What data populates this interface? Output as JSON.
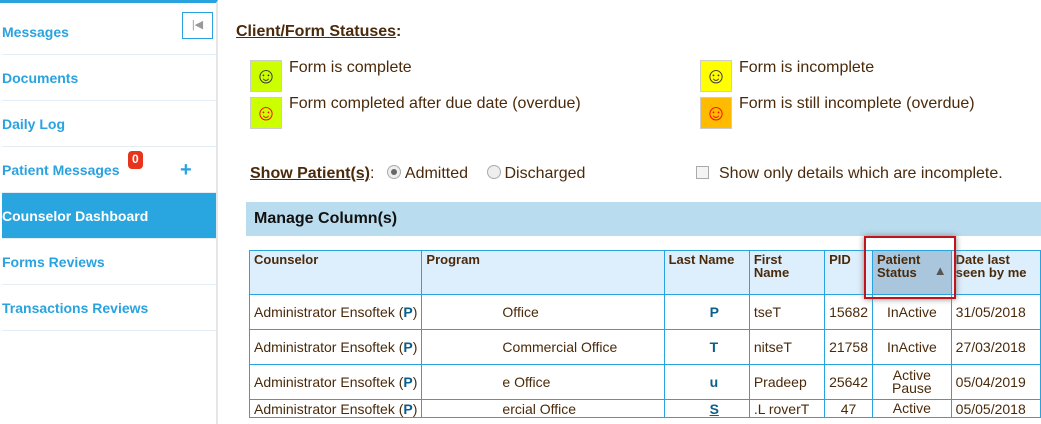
{
  "sidebar": {
    "items": [
      {
        "label": "Messages"
      },
      {
        "label": "Documents"
      },
      {
        "label": "Daily Log"
      },
      {
        "label": "Patient Messages",
        "badge": "0"
      },
      {
        "label": "Counselor Dashboard",
        "active": true
      },
      {
        "label": "Forms Reviews"
      },
      {
        "label": "Transactions Reviews"
      }
    ],
    "collapse_icon": "collapse-left-icon"
  },
  "statuses": {
    "title": "Client/Form Statuses",
    "items": [
      {
        "label": "Form is complete",
        "bg": "#ccff00",
        "face": "#333333"
      },
      {
        "label": "Form completed after due date (overdue)",
        "bg": "#ccff00",
        "face": "#ff0000"
      },
      {
        "label": "Form is incomplete",
        "bg": "#ffff00",
        "face": "#333333"
      },
      {
        "label": "Form is still incomplete (overdue)",
        "bg": "#ffbb00",
        "face": "#ff0000"
      }
    ]
  },
  "show": {
    "label": "Show Patient(s)",
    "options": [
      "Admitted",
      "Discharged"
    ],
    "selected": "Admitted",
    "incomplete_label": "Show only details which are incomplete.",
    "incomplete_checked": false
  },
  "manage_label": "Manage Column(s)",
  "table": {
    "headers": [
      "Counselor",
      "Program",
      "Last Name",
      "First Name",
      "PID",
      "Patient Status",
      "Date last seen by me"
    ],
    "sorted_column": "Patient Status",
    "sort_direction": "ascending",
    "rows": [
      {
        "counselor": "Administrator Ensoftek",
        "flag": "P",
        "program": "Office",
        "last": "P",
        "first": "tseT",
        "pid": "15682",
        "status": "InActive",
        "date": "31/05/2018"
      },
      {
        "counselor": "Administrator Ensoftek",
        "flag": "P",
        "program": "Commercial Office",
        "last": "T",
        "first": "nitseT",
        "pid": "21758",
        "status": "InActive",
        "date": "27/03/2018"
      },
      {
        "counselor": "Administrator Ensoftek",
        "flag": "P",
        "program": "e Office",
        "last": "u",
        "first": "Pradeep",
        "pid": "25642",
        "status": "Active Pause",
        "date": "05/04/2019"
      },
      {
        "counselor": "Administrator Ensoftek",
        "flag": "P",
        "program": "ercial Office",
        "last": "S",
        "first": ".L roverT",
        "pid": "47",
        "status": "Active",
        "date": "05/05/2018"
      }
    ]
  },
  "colors": {
    "accent": "#29a3e0",
    "highlight": "#c0141c"
  }
}
